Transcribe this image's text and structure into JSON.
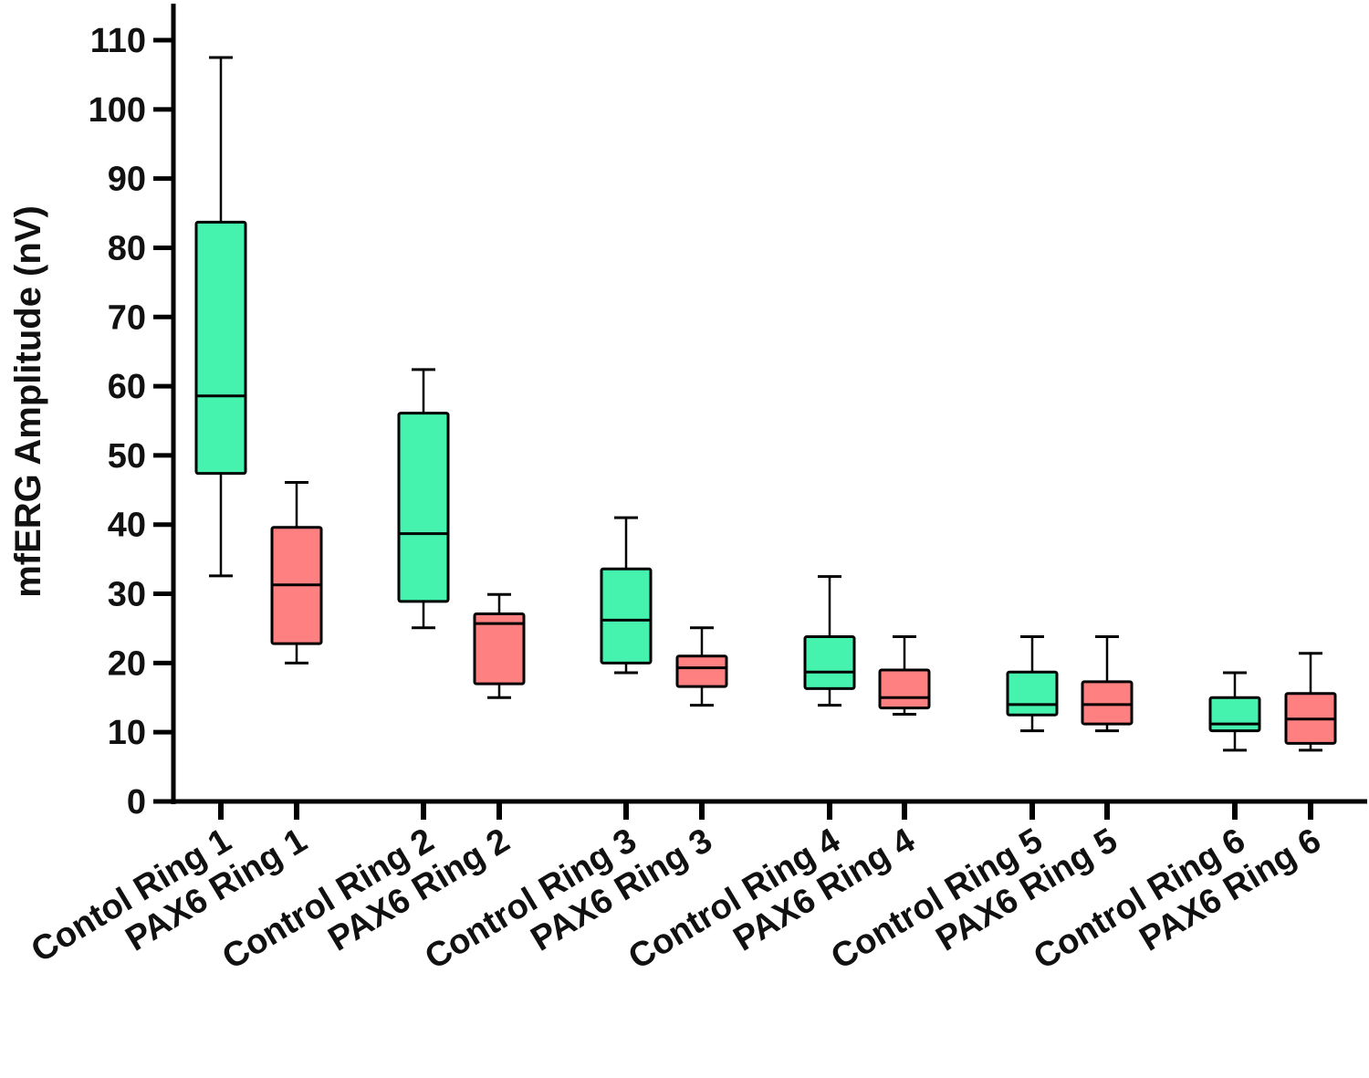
{
  "chart_data": {
    "type": "box",
    "title": "",
    "xlabel": "",
    "ylabel": "mfERG Amplitude (nV)",
    "ylim": [
      0,
      110
    ],
    "yticks": [
      0,
      10,
      20,
      30,
      40,
      50,
      60,
      70,
      80,
      90,
      100,
      110
    ],
    "grid": false,
    "legend": "none",
    "colors": {
      "Control": "#45F2AE",
      "PAX6": "#FF8080"
    },
    "categories": [
      "Contol Ring 1",
      "PAX6 Ring 1",
      "Control Ring 2",
      "PAX6 Ring 2",
      "Control Ring 3",
      "PAX6 Ring 3",
      "Control Ring 4",
      "PAX6 Ring 4",
      "Control Ring 5",
      "PAX6 Ring 5",
      "Control Ring 6",
      "PAX6 Ring 6"
    ],
    "groups": [
      "Control",
      "PAX6",
      "Control",
      "PAX6",
      "Control",
      "PAX6",
      "Control",
      "PAX6",
      "Control",
      "PAX6",
      "Control",
      "PAX6"
    ],
    "boxes": [
      {
        "min": 32.6,
        "q1": 47.4,
        "median": 58.6,
        "q3": 83.7,
        "max": 107.5
      },
      {
        "min": 20.0,
        "q1": 22.8,
        "median": 31.3,
        "q3": 39.6,
        "max": 46.1
      },
      {
        "min": 25.1,
        "q1": 28.9,
        "median": 38.7,
        "q3": 56.1,
        "max": 62.4
      },
      {
        "min": 15.0,
        "q1": 17.0,
        "median": 25.7,
        "q3": 27.1,
        "max": 29.9
      },
      {
        "min": 18.6,
        "q1": 20.0,
        "median": 26.2,
        "q3": 33.6,
        "max": 41.0
      },
      {
        "min": 13.9,
        "q1": 16.6,
        "median": 19.3,
        "q3": 21.0,
        "max": 25.1
      },
      {
        "min": 13.9,
        "q1": 16.3,
        "median": 18.7,
        "q3": 23.8,
        "max": 32.5
      },
      {
        "min": 12.6,
        "q1": 13.5,
        "median": 15.0,
        "q3": 19.0,
        "max": 23.8
      },
      {
        "min": 10.2,
        "q1": 12.5,
        "median": 14.0,
        "q3": 18.7,
        "max": 23.8
      },
      {
        "min": 10.2,
        "q1": 11.2,
        "median": 14.0,
        "q3": 17.3,
        "max": 23.8
      },
      {
        "min": 7.4,
        "q1": 10.2,
        "median": 11.2,
        "q3": 15.0,
        "max": 18.6
      },
      {
        "min": 7.4,
        "q1": 8.4,
        "median": 11.9,
        "q3": 15.6,
        "max": 21.4
      }
    ]
  }
}
